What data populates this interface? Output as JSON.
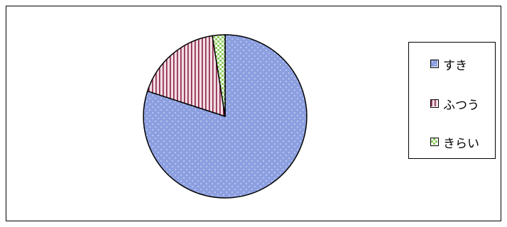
{
  "chart_data": {
    "type": "pie",
    "title": "",
    "categories": [
      "すき",
      "ふつう",
      "きらい"
    ],
    "values": [
      80,
      17.5,
      2.5
    ],
    "series": [
      {
        "values": [
          80,
          17.5,
          2.5
        ]
      }
    ],
    "start_angle_deg": 0,
    "direction": "clockwise",
    "legend_position": "right",
    "colors": [
      "#8c9fe0",
      "#f3dde3",
      "#8fcc5f"
    ],
    "patterns": [
      "dots",
      "vertical-stripes",
      "checker"
    ],
    "pattern_colors": [
      "#c6cff4",
      "#8a2246",
      "#ffffff"
    ]
  }
}
